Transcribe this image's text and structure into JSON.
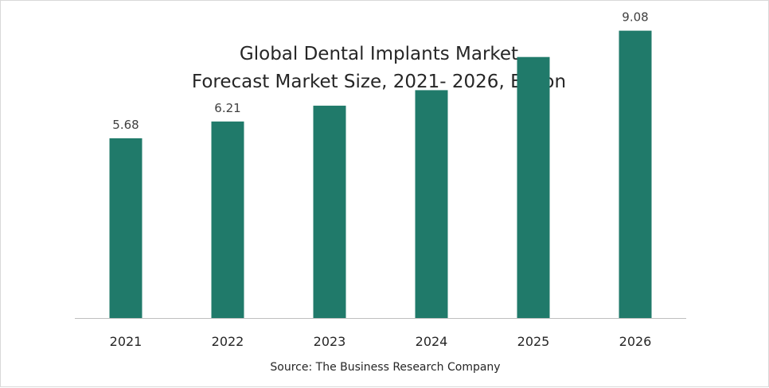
{
  "chart_data": {
    "type": "bar",
    "title_line1": "Global Dental Implants Market",
    "title_line2": "Forecast Market Size, 2021- 2026, Billion",
    "categories": [
      "2021",
      "2022",
      "2023",
      "2024",
      "2025",
      "2026"
    ],
    "values": [
      5.68,
      6.21,
      6.71,
      7.2,
      8.25,
      9.08
    ],
    "data_labels": [
      "5.68",
      "6.21",
      "",
      "",
      "",
      "9.08"
    ],
    "xlabel": "",
    "ylabel": "",
    "ylim": [
      0,
      10
    ],
    "grid": false,
    "legend": "none",
    "bar_color": "#207A6A",
    "axis_color": "#bfbfbf",
    "text_color": "#404040"
  },
  "source": "Source: The Business Research Company"
}
